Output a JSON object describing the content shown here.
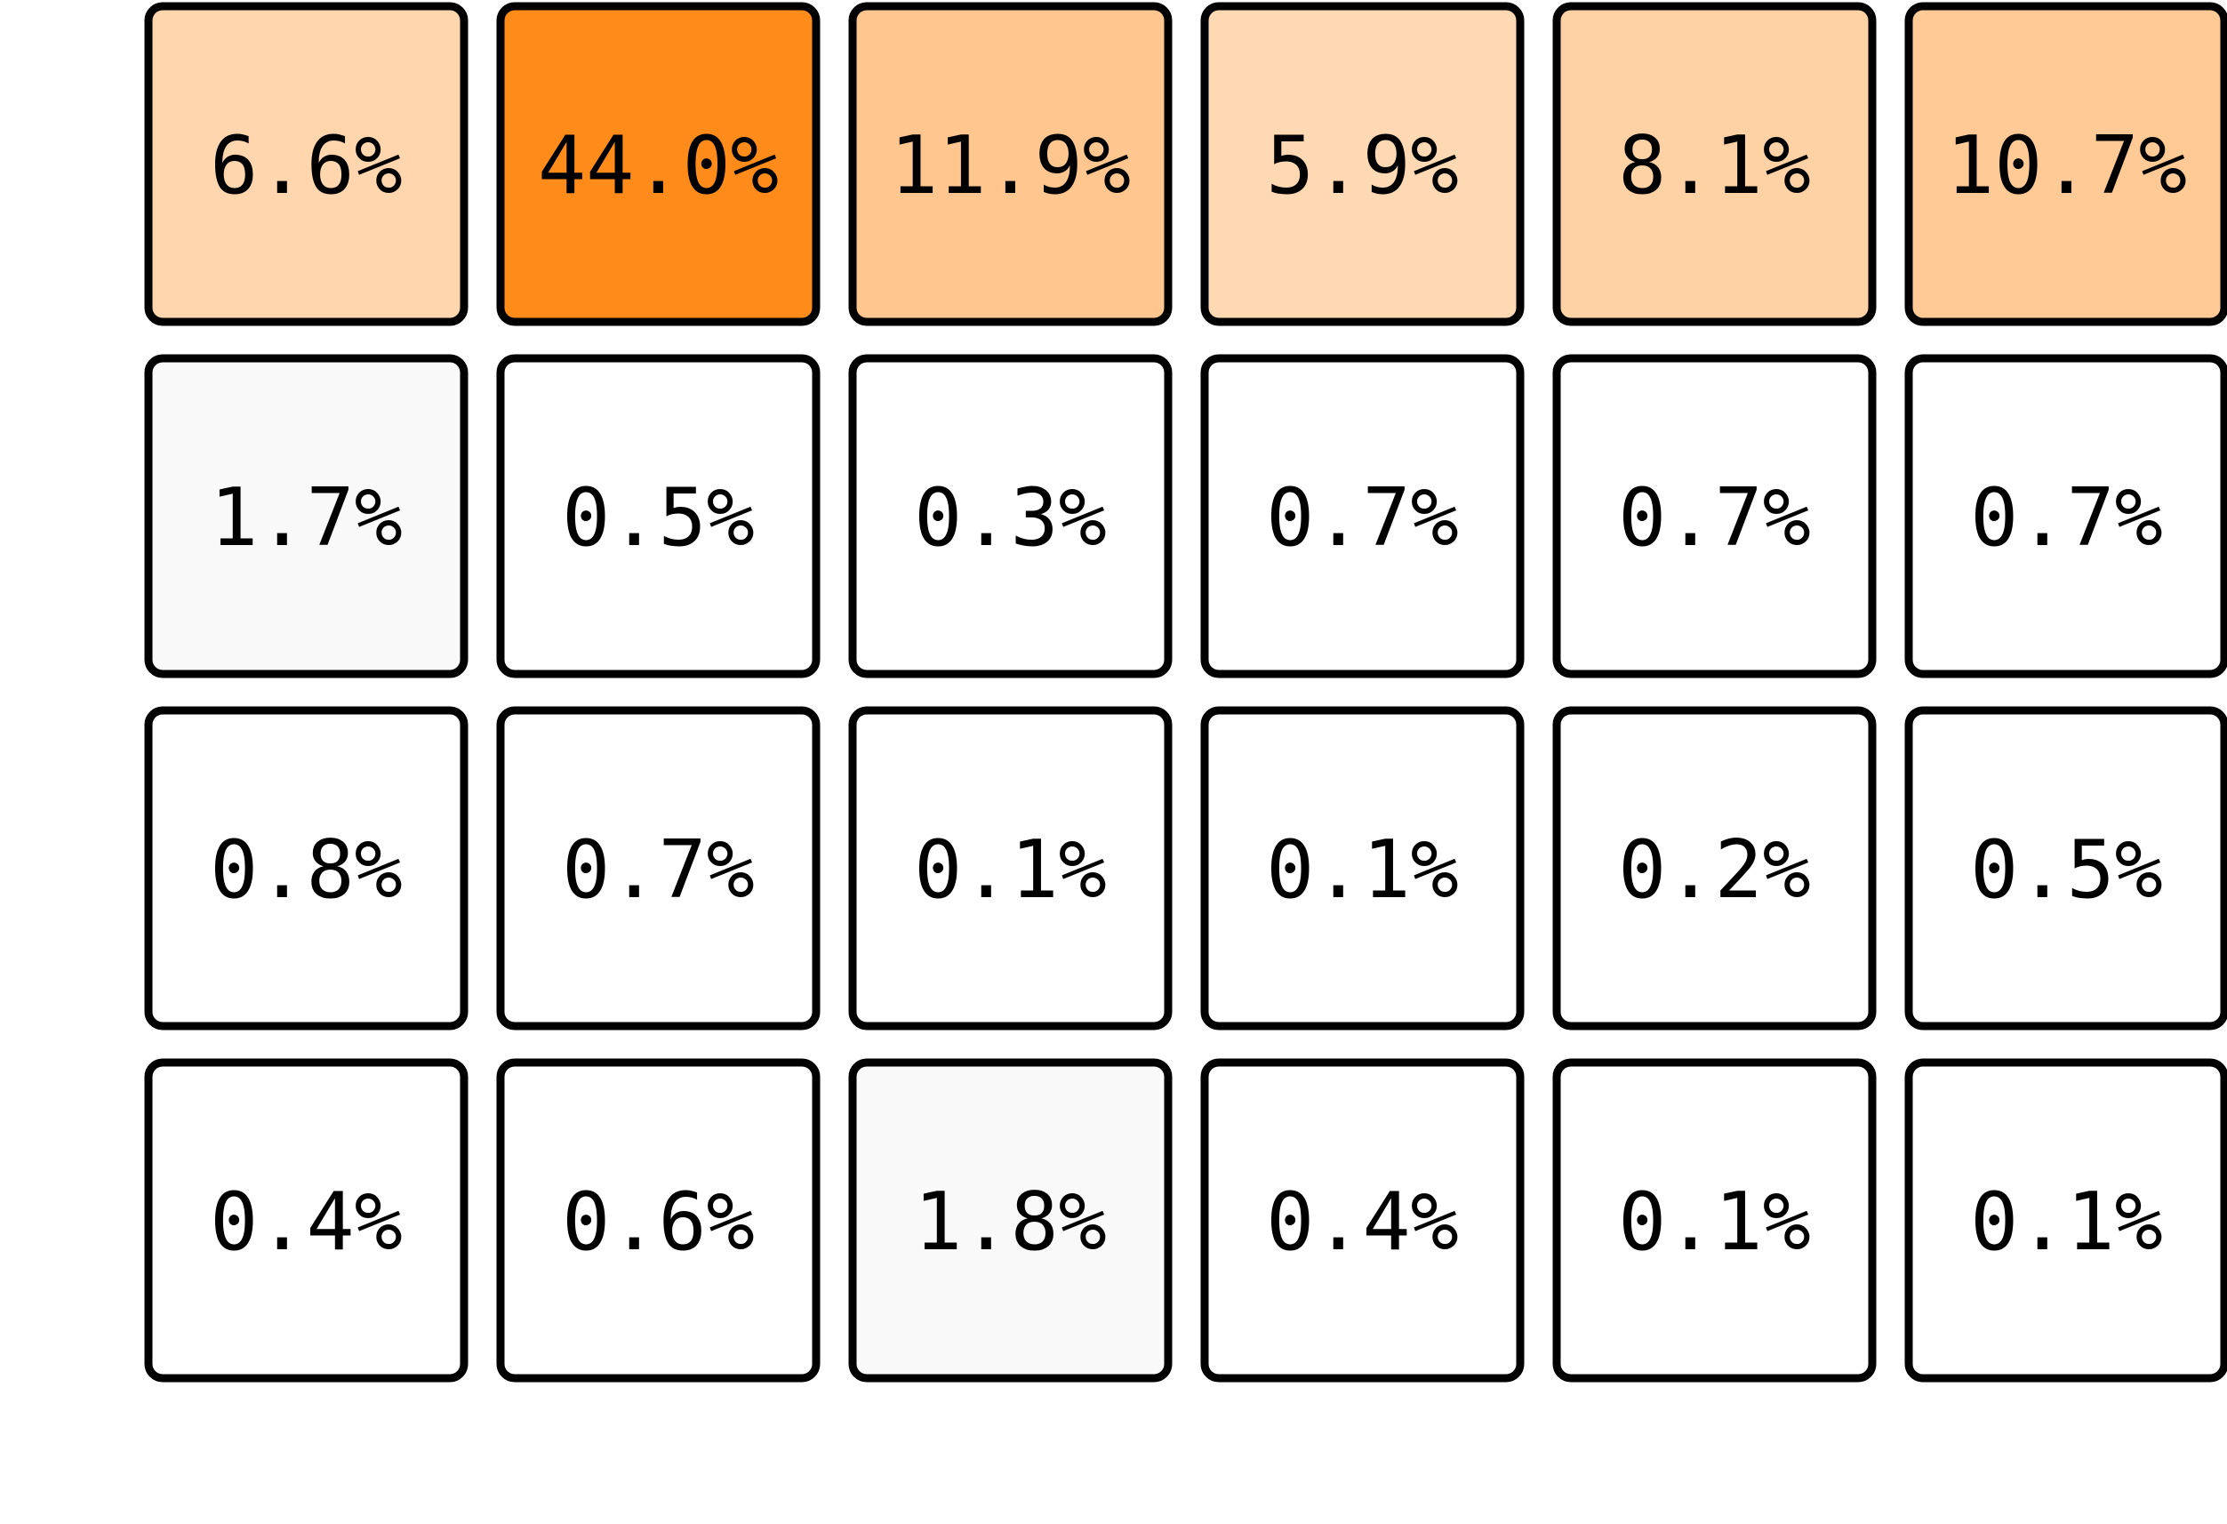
{
  "chart_data": {
    "type": "heatmap",
    "title": "",
    "xlabel": "",
    "ylabel": "",
    "value_unit": "%",
    "color_scale": {
      "low": "#ffffff",
      "high": "#ff8c1a",
      "min": 0,
      "max": 44.0
    },
    "rows": [
      {
        "values": [
          6.6,
          44.0,
          11.9,
          5.9,
          8.1,
          10.7
        ],
        "labels": [
          "6.6%",
          "44.0%",
          "11.9%",
          "5.9%",
          "8.1%",
          "10.7%"
        ]
      },
      {
        "values": [
          1.7,
          0.5,
          0.3,
          0.7,
          0.7,
          0.7
        ],
        "labels": [
          "1.7%",
          "0.5%",
          "0.3%",
          "0.7%",
          "0.7%",
          "0.7%"
        ]
      },
      {
        "values": [
          0.8,
          0.7,
          0.1,
          0.1,
          0.2,
          0.5
        ],
        "labels": [
          "0.8%",
          "0.7%",
          "0.1%",
          "0.1%",
          "0.2%",
          "0.5%"
        ]
      },
      {
        "values": [
          0.4,
          0.6,
          1.8,
          0.4,
          0.1,
          0.1
        ],
        "labels": [
          "0.4%",
          "0.6%",
          "1.8%",
          "0.4%",
          "0.1%",
          "0.1%"
        ]
      }
    ]
  }
}
